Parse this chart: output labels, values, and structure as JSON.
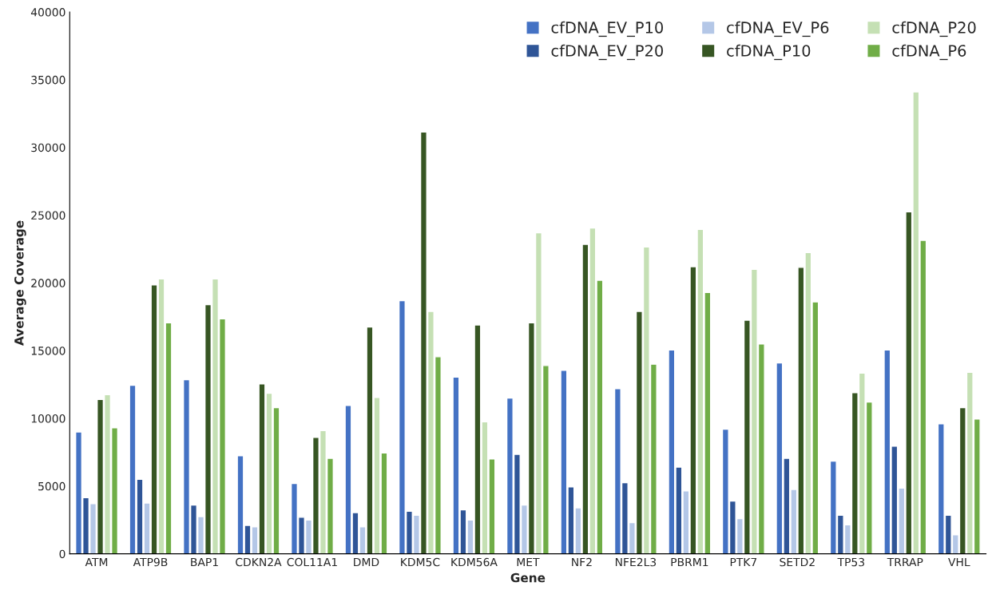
{
  "chart_data": {
    "type": "bar",
    "xlabel": "Gene",
    "ylabel": "Average Coverage",
    "categories": [
      "ATM",
      "ATP9B",
      "BAP1",
      "CDKN2A",
      "COL11A1",
      "DMD",
      "KDM5C",
      "KDM56A",
      "MET",
      "NF2",
      "NFE2L3",
      "PBRM1",
      "PTK7",
      "SETD2",
      "TP53",
      "TRRAP",
      "VHL"
    ],
    "series": [
      {
        "name": "cfDNA_EV_P10",
        "color": "#4472c4",
        "values": [
          9000,
          12450,
          12850,
          7250,
          5200,
          10950,
          18700,
          13050,
          11500,
          13550,
          12200,
          15050,
          9200,
          14100,
          6850,
          15050,
          9600
        ]
      },
      {
        "name": "cfDNA_EV_P20",
        "color": "#2f5597",
        "values": [
          4150,
          5500,
          3600,
          2100,
          2700,
          3050,
          3150,
          3250,
          7350,
          4950,
          5250,
          6400,
          3900,
          7050,
          2850,
          7950,
          2850
        ]
      },
      {
        "name": "cfDNA_EV_P6",
        "color": "#b4c7e7",
        "values": [
          3700,
          3750,
          2750,
          2000,
          2500,
          2000,
          2850,
          2500,
          3600,
          3400,
          2300,
          4650,
          2600,
          4750,
          2150,
          4850,
          1400
        ]
      },
      {
        "name": "cfDNA_P10",
        "color": "#375623",
        "values": [
          11400,
          19850,
          18400,
          12550,
          8600,
          16750,
          31150,
          16900,
          17050,
          22850,
          17900,
          21200,
          17250,
          21150,
          11900,
          25250,
          10800
        ]
      },
      {
        "name": "cfDNA_P20",
        "color": "#c5e0b4",
        "values": [
          11750,
          20300,
          20300,
          11850,
          9100,
          11550,
          17900,
          9750,
          23700,
          24050,
          22650,
          23950,
          21000,
          22250,
          13350,
          34100,
          13400
        ]
      },
      {
        "name": "cfDNA_P6",
        "color": "#70ad47",
        "values": [
          9300,
          17050,
          17350,
          10800,
          7050,
          7450,
          14550,
          7000,
          13900,
          20200,
          14000,
          19300,
          15500,
          18600,
          11200,
          23150,
          9950
        ]
      }
    ],
    "ylim": [
      0,
      40000
    ],
    "yticks": [
      0,
      5000,
      10000,
      15000,
      20000,
      25000,
      30000,
      35000,
      40000
    ],
    "grid": false,
    "legend": "top right"
  }
}
